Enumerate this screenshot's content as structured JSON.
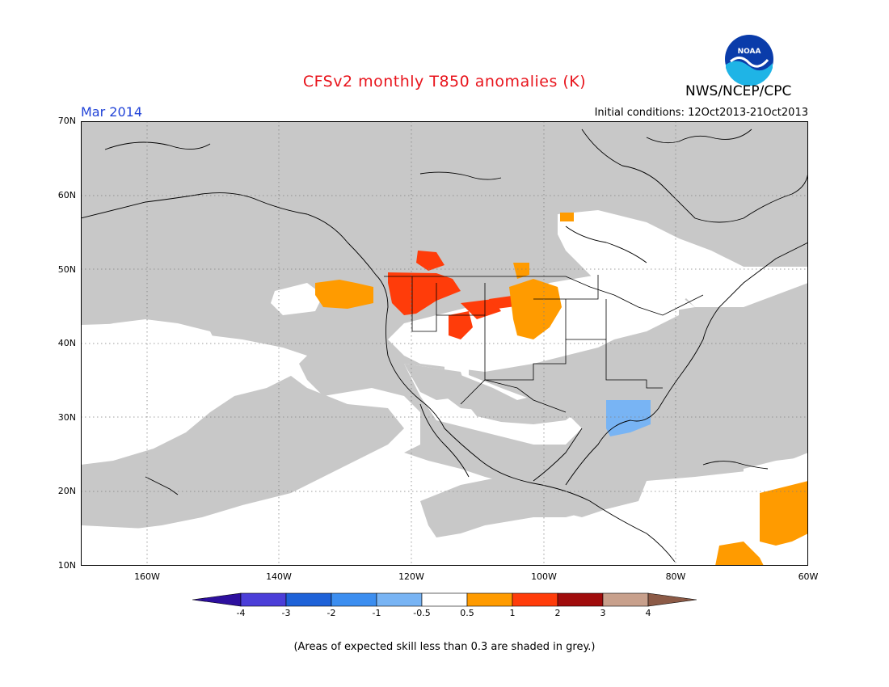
{
  "title": "CFSv2 monthly T850 anomalies (K)",
  "period": "Mar 2014",
  "initial_conditions": "Initial conditions: 12Oct2013-21Oct2013",
  "agency": "NWS/NCEP/CPC",
  "logo_text": "NOAA",
  "map": {
    "lat_labels": [
      "70N",
      "60N",
      "50N",
      "40N",
      "30N",
      "20N",
      "10N"
    ],
    "lon_labels": [
      "160W",
      "140W",
      "120W",
      "100W",
      "80W",
      "60W"
    ],
    "lon_range": [
      -170,
      -60
    ],
    "lat_range": [
      10,
      70
    ],
    "grey_color": "#c8c8c8"
  },
  "colorbar": {
    "ticks": [
      "-4",
      "-3",
      "-2",
      "-1",
      "-0.5",
      "0.5",
      "1",
      "2",
      "3",
      "4"
    ],
    "colors": [
      "#2d0f9e",
      "#4b3ed8",
      "#1e62d8",
      "#3c8ef0",
      "#78b4f4",
      "#ffffff",
      "#ff9b00",
      "#ff3c0a",
      "#a00c0c",
      "#c8a08c",
      "#8c5a46"
    ]
  },
  "note": "(Areas of expected skill less than 0.3 are shaded in grey.)"
}
